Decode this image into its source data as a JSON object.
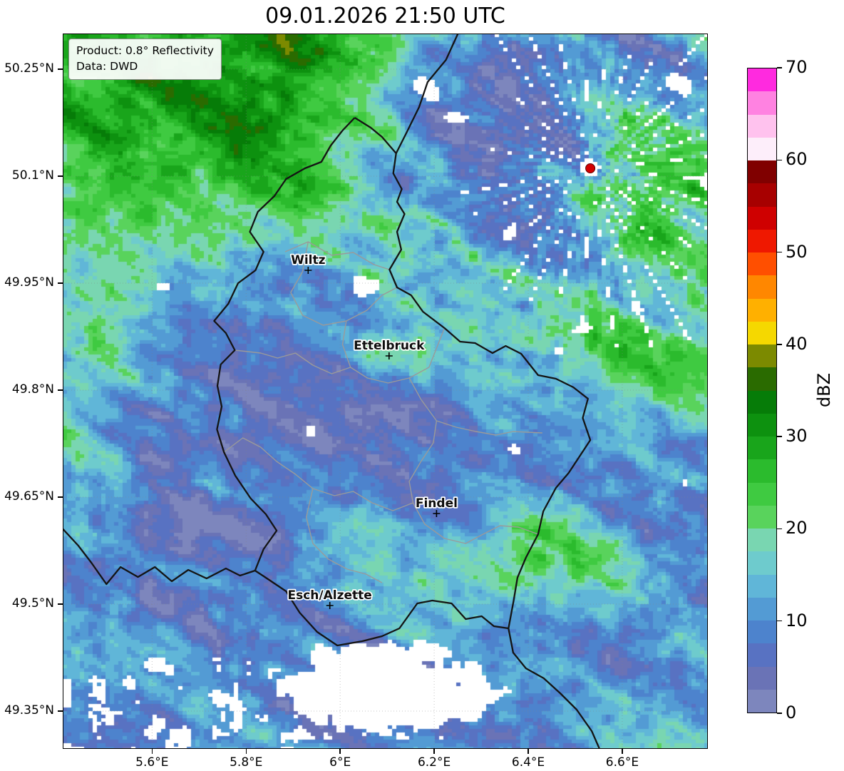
{
  "title": "09.01.2026 21:50 UTC",
  "info_box": {
    "line1": "Product: 0.8° Reflectivity",
    "line2": "Data: DWD"
  },
  "map": {
    "extent": {
      "lon_min": 5.41,
      "lon_max": 6.782,
      "lat_min": 49.297,
      "lat_max": 50.3
    },
    "lon_ticks": [
      5.6,
      5.8,
      6,
      6.2,
      6.4,
      6.6
    ],
    "lon_suffix": "°E",
    "lat_ticks": [
      50.25,
      50.1,
      49.95,
      49.8,
      49.65,
      49.5,
      49.35
    ],
    "lat_suffix": "°N",
    "cities": [
      {
        "name": "Wiltz",
        "lon": 5.932,
        "lat": 49.968
      },
      {
        "name": "Ettelbruck",
        "lon": 6.104,
        "lat": 49.848
      },
      {
        "name": "Findel",
        "lon": 6.205,
        "lat": 49.627
      },
      {
        "name": "Esch/Alzette",
        "lon": 5.978,
        "lat": 49.498
      }
    ],
    "radar_site": {
      "lon": 6.532,
      "lat": 50.111,
      "color": "#d40000"
    },
    "border_colors": {
      "country": "#141414",
      "district": "#9a9a9a"
    },
    "country_borders": [
      [
        [
          6.031,
          50.182
        ],
        [
          6.065,
          50.168
        ],
        [
          6.089,
          50.155
        ],
        [
          6.119,
          50.132
        ],
        [
          6.113,
          50.104
        ],
        [
          6.131,
          50.082
        ],
        [
          6.121,
          50.064
        ],
        [
          6.137,
          50.047
        ],
        [
          6.121,
          50.022
        ],
        [
          6.13,
          49.997
        ],
        [
          6.105,
          49.969
        ],
        [
          6.121,
          49.944
        ],
        [
          6.151,
          49.933
        ],
        [
          6.176,
          49.91
        ],
        [
          6.222,
          49.887
        ],
        [
          6.255,
          49.868
        ],
        [
          6.287,
          49.866
        ],
        [
          6.324,
          49.852
        ],
        [
          6.352,
          49.862
        ],
        [
          6.385,
          49.851
        ],
        [
          6.421,
          49.821
        ],
        [
          6.459,
          49.816
        ],
        [
          6.496,
          49.804
        ],
        [
          6.527,
          49.788
        ],
        [
          6.516,
          49.761
        ],
        [
          6.532,
          49.73
        ],
        [
          6.508,
          49.706
        ],
        [
          6.486,
          49.684
        ],
        [
          6.459,
          49.663
        ],
        [
          6.432,
          49.63
        ],
        [
          6.421,
          49.598
        ],
        [
          6.395,
          49.565
        ],
        [
          6.377,
          49.537
        ],
        [
          6.369,
          49.505
        ],
        [
          6.358,
          49.466
        ],
        [
          6.327,
          49.469
        ],
        [
          6.301,
          49.483
        ],
        [
          6.267,
          49.479
        ],
        [
          6.237,
          49.501
        ],
        [
          6.196,
          49.505
        ],
        [
          6.164,
          49.501
        ],
        [
          6.126,
          49.466
        ],
        [
          6.089,
          49.455
        ],
        [
          6.047,
          49.448
        ],
        [
          5.994,
          49.442
        ],
        [
          5.951,
          49.461
        ],
        [
          5.914,
          49.488
        ],
        [
          5.885,
          49.518
        ],
        [
          5.842,
          49.537
        ],
        [
          5.819,
          49.547
        ],
        [
          5.837,
          49.577
        ],
        [
          5.865,
          49.603
        ],
        [
          5.842,
          49.626
        ],
        [
          5.81,
          49.648
        ],
        [
          5.777,
          49.68
        ],
        [
          5.753,
          49.713
        ],
        [
          5.738,
          49.745
        ],
        [
          5.748,
          49.777
        ],
        [
          5.739,
          49.806
        ],
        [
          5.746,
          49.836
        ],
        [
          5.776,
          49.856
        ],
        [
          5.757,
          49.88
        ],
        [
          5.732,
          49.897
        ],
        [
          5.762,
          49.921
        ],
        [
          5.783,
          49.95
        ],
        [
          5.82,
          49.968
        ],
        [
          5.837,
          49.994
        ],
        [
          5.808,
          50.022
        ],
        [
          5.825,
          50.05
        ],
        [
          5.86,
          50.072
        ],
        [
          5.885,
          50.096
        ],
        [
          5.925,
          50.111
        ],
        [
          5.96,
          50.12
        ],
        [
          5.98,
          50.143
        ],
        [
          6.005,
          50.164
        ],
        [
          6.031,
          50.182
        ]
      ],
      [
        [
          6.119,
          50.132
        ],
        [
          6.142,
          50.162
        ],
        [
          6.168,
          50.197
        ],
        [
          6.186,
          50.232
        ],
        [
          6.225,
          50.263
        ],
        [
          6.252,
          50.302
        ]
      ],
      [
        [
          5.408,
          49.607
        ],
        [
          5.443,
          49.582
        ],
        [
          5.471,
          49.558
        ],
        [
          5.503,
          49.528
        ],
        [
          5.533,
          49.552
        ],
        [
          5.57,
          49.538
        ],
        [
          5.606,
          49.552
        ],
        [
          5.642,
          49.532
        ],
        [
          5.677,
          49.548
        ],
        [
          5.716,
          49.536
        ],
        [
          5.757,
          49.55
        ],
        [
          5.787,
          49.54
        ],
        [
          5.819,
          49.547
        ]
      ],
      [
        [
          6.358,
          49.466
        ],
        [
          6.368,
          49.432
        ],
        [
          6.395,
          49.41
        ],
        [
          6.433,
          49.396
        ],
        [
          6.468,
          49.375
        ],
        [
          6.503,
          49.352
        ],
        [
          6.535,
          49.322
        ],
        [
          6.553,
          49.295
        ]
      ]
    ],
    "district_borders": [
      [
        [
          5.883,
          49.994
        ],
        [
          5.932,
          50.008
        ],
        [
          5.982,
          49.989
        ],
        [
          6.028,
          49.993
        ],
        [
          6.072,
          49.976
        ],
        [
          6.105,
          49.969
        ]
      ],
      [
        [
          5.932,
          50.008
        ],
        [
          5.92,
          49.966
        ],
        [
          5.895,
          49.937
        ],
        [
          5.92,
          49.905
        ],
        [
          5.964,
          49.891
        ],
        [
          6.013,
          49.897
        ],
        [
          6.057,
          49.912
        ],
        [
          6.089,
          49.933
        ],
        [
          6.121,
          49.944
        ]
      ],
      [
        [
          6.013,
          49.897
        ],
        [
          6.005,
          49.864
        ],
        [
          6.022,
          49.832
        ],
        [
          6.058,
          49.817
        ],
        [
          6.102,
          49.81
        ],
        [
          6.147,
          49.817
        ],
        [
          6.189,
          49.832
        ],
        [
          6.222,
          49.887
        ]
      ],
      [
        [
          6.022,
          49.832
        ],
        [
          5.982,
          49.823
        ],
        [
          5.942,
          49.835
        ],
        [
          5.905,
          49.852
        ],
        [
          5.867,
          49.845
        ],
        [
          5.831,
          49.852
        ],
        [
          5.776,
          49.856
        ]
      ],
      [
        [
          6.147,
          49.817
        ],
        [
          6.172,
          49.787
        ],
        [
          6.205,
          49.757
        ],
        [
          6.198,
          49.726
        ],
        [
          6.172,
          49.7
        ],
        [
          6.147,
          49.672
        ],
        [
          6.155,
          49.642
        ],
        [
          6.18,
          49.612
        ],
        [
          6.222,
          49.592
        ],
        [
          6.267,
          49.585
        ],
        [
          6.301,
          49.597
        ],
        [
          6.34,
          49.61
        ],
        [
          6.379,
          49.608
        ],
        [
          6.421,
          49.598
        ]
      ],
      [
        [
          6.155,
          49.642
        ],
        [
          6.112,
          49.631
        ],
        [
          6.068,
          49.642
        ],
        [
          6.028,
          49.658
        ],
        [
          5.988,
          49.652
        ],
        [
          5.942,
          49.662
        ],
        [
          5.905,
          49.682
        ],
        [
          5.865,
          49.7
        ],
        [
          5.831,
          49.72
        ],
        [
          5.793,
          49.733
        ],
        [
          5.753,
          49.713
        ]
      ],
      [
        [
          5.942,
          49.662
        ],
        [
          5.928,
          49.622
        ],
        [
          5.942,
          49.585
        ],
        [
          5.975,
          49.563
        ],
        [
          6.015,
          49.549
        ],
        [
          6.055,
          49.542
        ],
        [
          6.089,
          49.53
        ]
      ],
      [
        [
          6.205,
          49.757
        ],
        [
          6.247,
          49.748
        ],
        [
          6.289,
          49.742
        ],
        [
          6.331,
          49.737
        ],
        [
          6.368,
          49.742
        ],
        [
          6.43,
          49.74
        ]
      ]
    ]
  },
  "colorbar": {
    "label": "dBZ",
    "min": 0,
    "max": 70,
    "step": 2.5,
    "ticks": [
      0,
      10,
      20,
      30,
      40,
      50,
      60,
      70
    ],
    "nodata_color": "#ffffff",
    "colors": [
      "#7d86bd",
      "#6a73b6",
      "#5872c2",
      "#4d83cd",
      "#539bd4",
      "#60b6d8",
      "#6ecbcd",
      "#79d6b1",
      "#59d35c",
      "#3fca41",
      "#2bbb2d",
      "#19a51b",
      "#0d910f",
      "#067c08",
      "#2a6b00",
      "#7c8a00",
      "#f5d800",
      "#ffb000",
      "#ff8700",
      "#ff4f00",
      "#ef1800",
      "#cf0000",
      "#a70000",
      "#800000",
      "#fdeefa",
      "#ffc2ee",
      "#ff82e1",
      "#ff2adf"
    ]
  },
  "chart_data": {
    "type": "heatmap",
    "title": "09.01.2026 21:50 UTC",
    "value_label": "dBZ",
    "value_range": [
      0,
      70
    ],
    "value_tick_step": 10,
    "palette_step_dbz": 2.5,
    "x_ticks": [
      "5.6°E",
      "5.8°E",
      "6°E",
      "6.2°E",
      "6.4°E",
      "6.6°E"
    ],
    "y_ticks": [
      "50.25°N",
      "50.1°N",
      "49.95°N",
      "49.8°N",
      "49.65°N",
      "49.5°N",
      "49.35°N"
    ],
    "annotations": [
      "Wiltz",
      "Ettelbruck",
      "Findel",
      "Esch/Alzette"
    ],
    "notes": "Radar reflectivity field over Luxembourg and surroundings; observed echoes mostly 0-30 dBZ (slate blue, blue, teal, green bands oriented SW-NE); white = no echo; radial spoke artifacts around radar site near 6.53°E / 50.11°N marked with a red dot; national borders in black, canton borders in gray; legend is a vertical dBZ colorbar from 0 (slate blue) through greens (20-35), yellow/orange (40-47.5), red (50-60) to pink/magenta (60-70)."
  }
}
